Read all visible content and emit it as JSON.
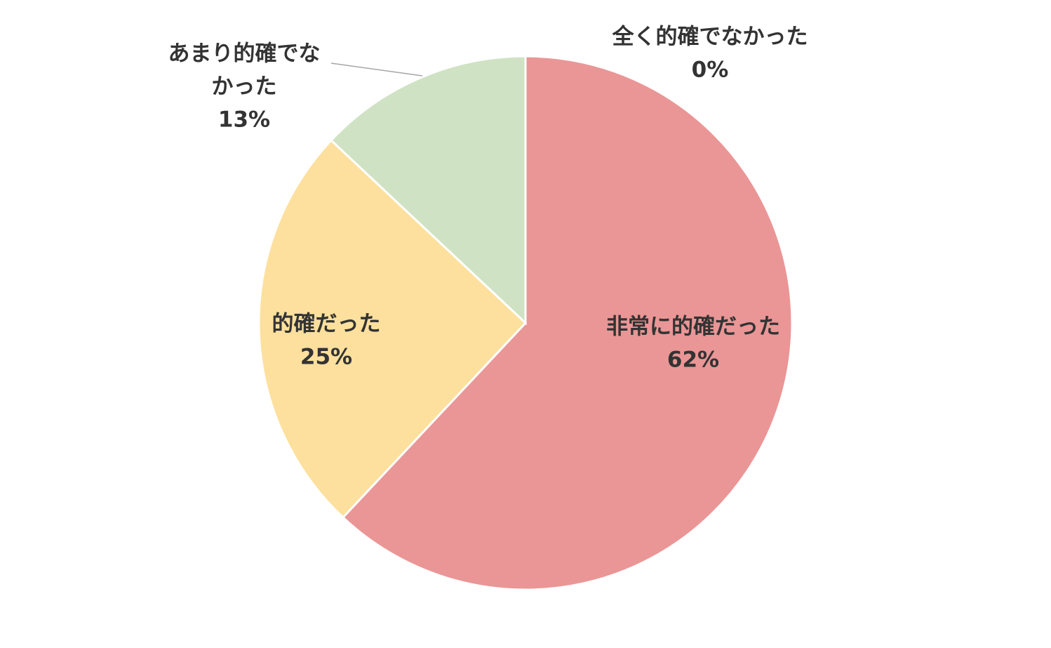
{
  "chart_data": {
    "type": "pie",
    "title": "",
    "start_angle_deg": 0,
    "direction": "clockwise",
    "slices": [
      {
        "label": "非常に的確だった",
        "label_lines": [
          "非常に的確だった"
        ],
        "percent_label": "62%",
        "value": 62,
        "color": "#EA9696"
      },
      {
        "label": "的確だった",
        "label_lines": [
          "的確だった"
        ],
        "percent_label": "25%",
        "value": 25,
        "color": "#FDE09D"
      },
      {
        "label": "あまり的確でなかった",
        "label_lines": [
          "あまり的確でな",
          "かった"
        ],
        "percent_label": "13%",
        "value": 13,
        "color": "#D0E2C4"
      },
      {
        "label": "全く的確でなかった",
        "label_lines": [
          "全く的確でなかった"
        ],
        "percent_label": "0%",
        "value": 0,
        "color": "#9DC3E6"
      }
    ]
  }
}
